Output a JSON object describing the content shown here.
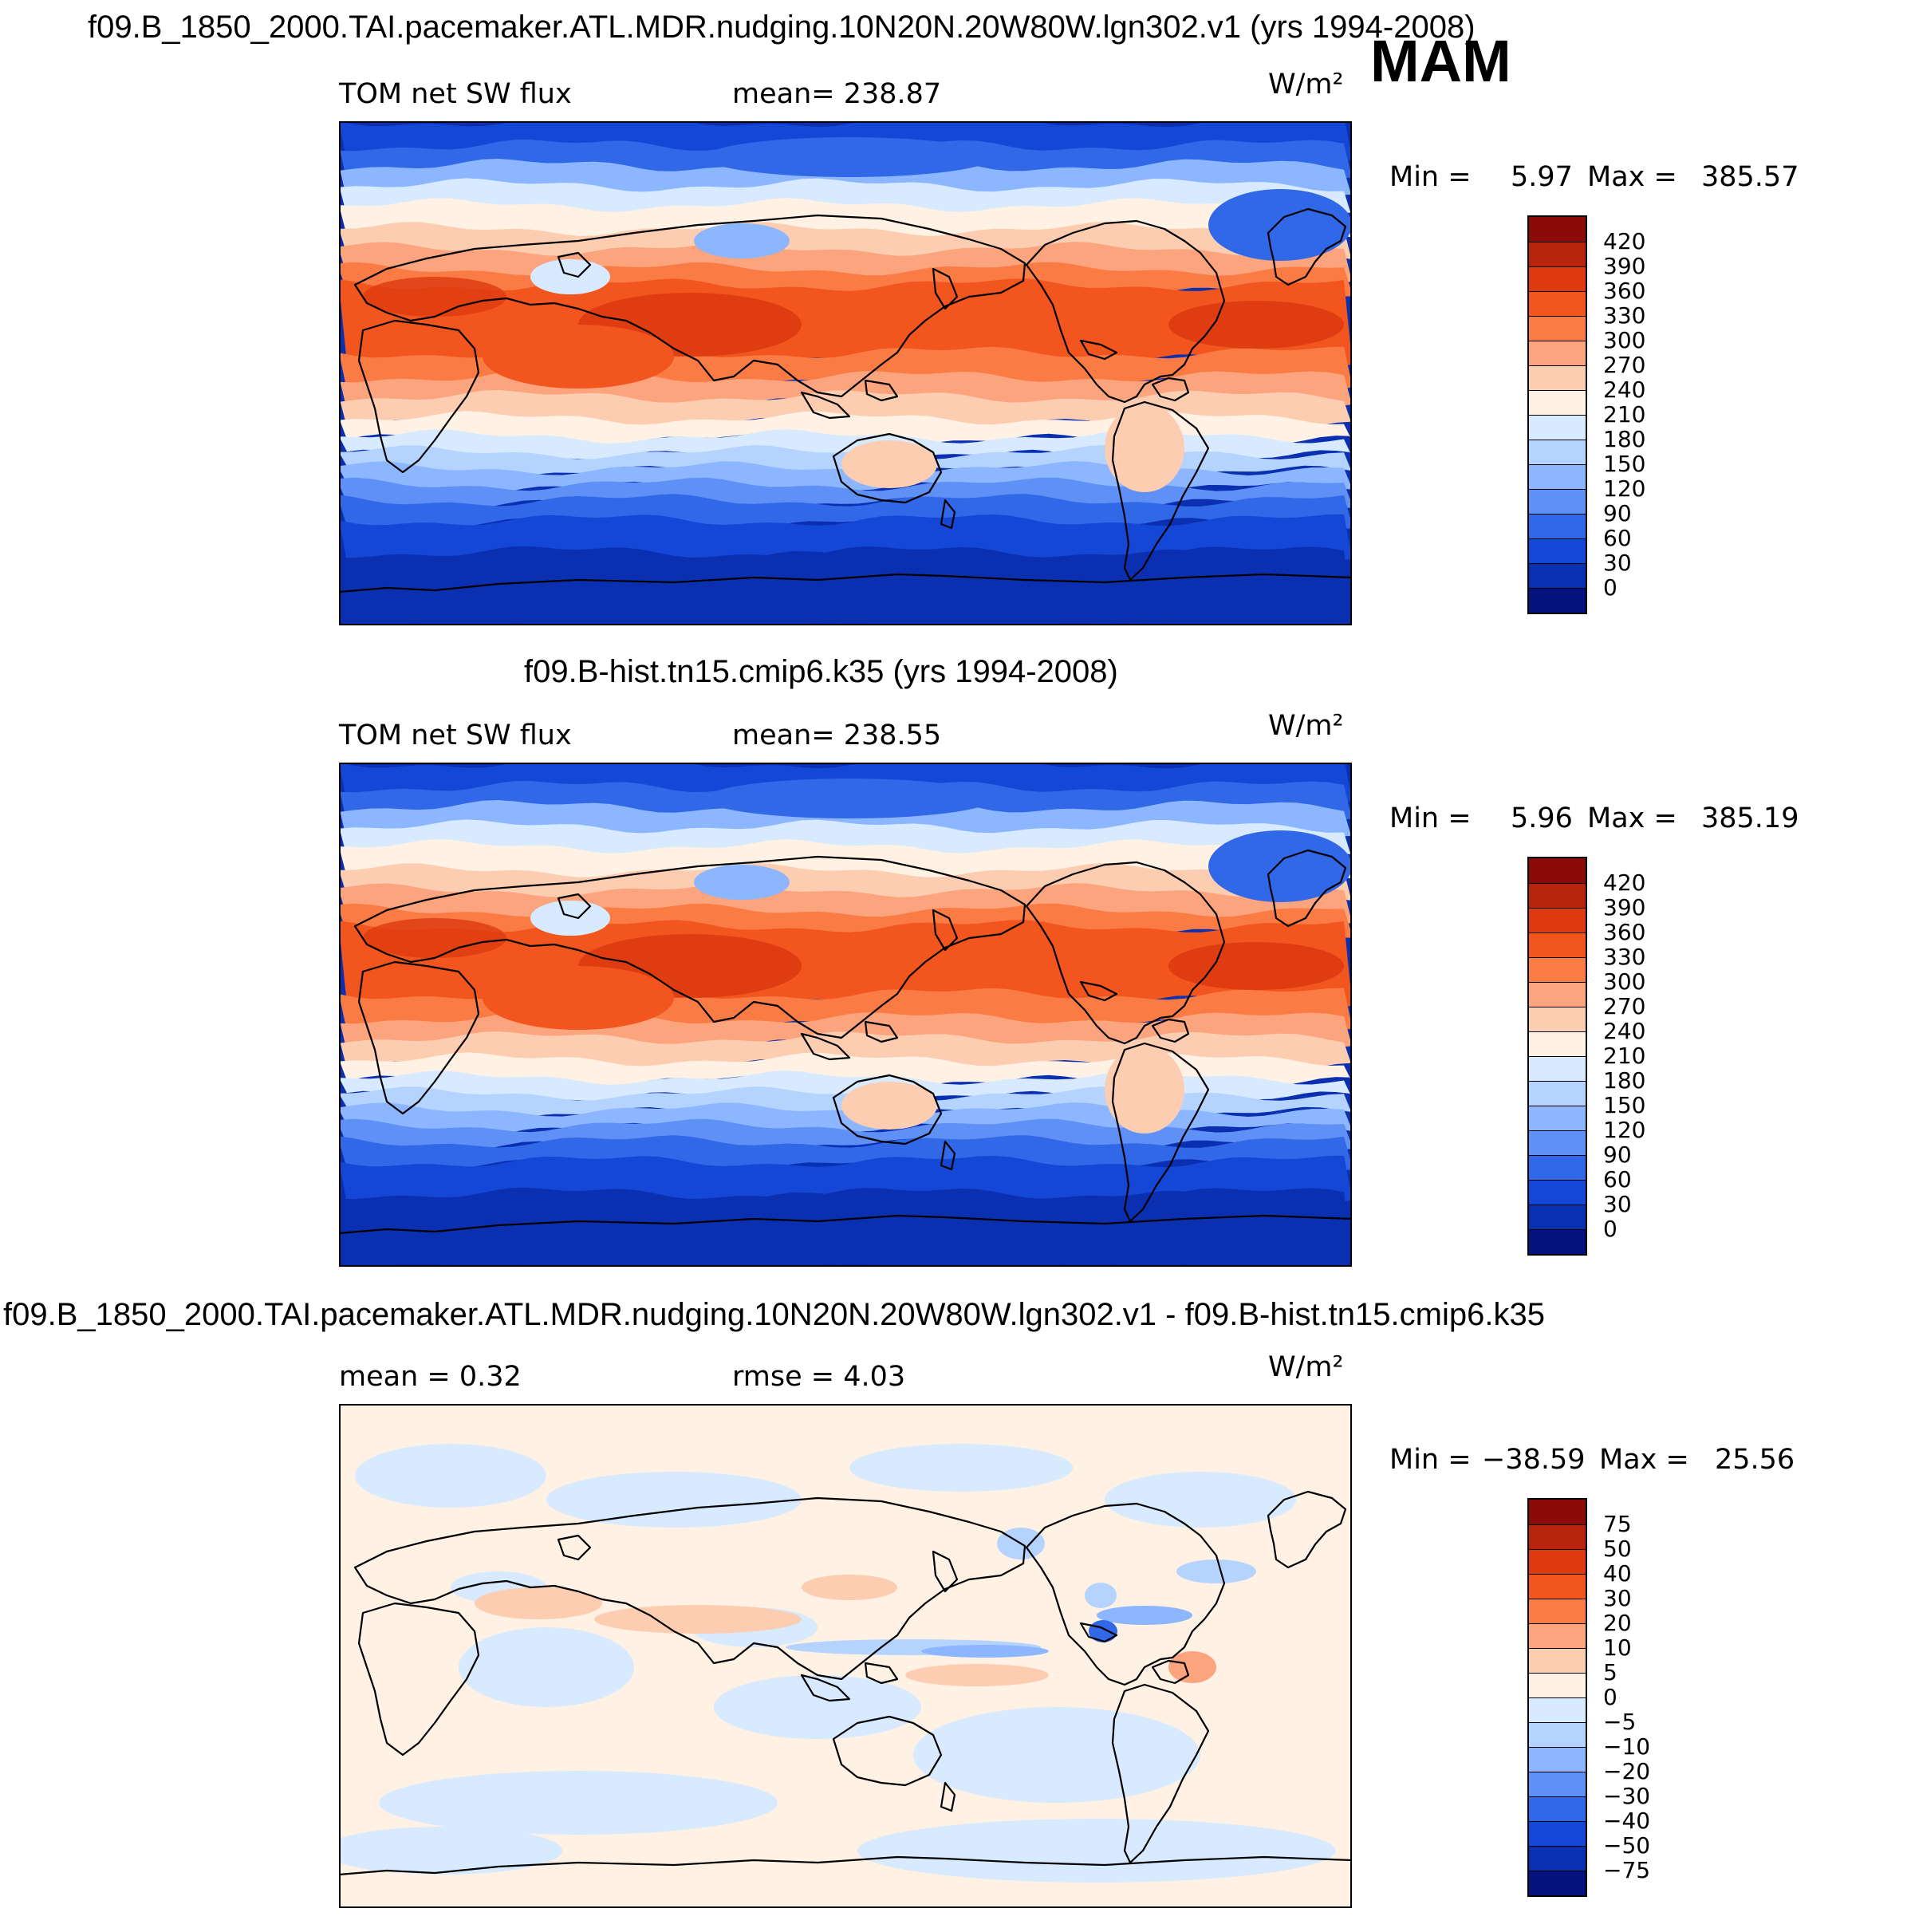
{
  "header": {
    "title_top": "f09.B_1850_2000.TAI.pacemaker.ATL.MDR.nudging.10N20N.20W80W.lgn302.v1 (yrs 1994-2008)",
    "season": "MAM",
    "title_mid": "f09.B-hist.tn15.cmip6.k35 (yrs 1994-2008)",
    "title_diff": "f09.B_1850_2000.TAI.pacemaker.ATL.MDR.nudging.10N20N.20W80W.lgn302.v1 - f09.B-hist.tn15.cmip6.k35"
  },
  "panels": [
    {
      "id": "case",
      "left_label": "TOM net SW flux",
      "stat_label": "mean= 238.87",
      "units": "W/m²",
      "min_label": "Min =",
      "min_value": "5.97",
      "max_label": "Max =",
      "max_value": "385.57",
      "levels": [
        "420",
        "390",
        "360",
        "330",
        "300",
        "270",
        "240",
        "210",
        "180",
        "150",
        "120",
        "90",
        "60",
        "30",
        "0"
      ],
      "colors": [
        "#8b0a0a",
        "#b8230d",
        "#dd3a0f",
        "#f2561e",
        "#fb7b45",
        "#fca47d",
        "#fdcdb2",
        "#fff1e3",
        "#d7eaff",
        "#b4d3ff",
        "#8cb6ff",
        "#5e90f5",
        "#3068e8",
        "#1447d6",
        "#0a2fb0",
        "#04127e"
      ],
      "kind": "abs"
    },
    {
      "id": "control",
      "left_label": "TOM net SW flux",
      "stat_label": "mean= 238.55",
      "units": "W/m²",
      "min_label": "Min =",
      "min_value": "5.96",
      "max_label": "Max =",
      "max_value": "385.19",
      "levels": [
        "420",
        "390",
        "360",
        "330",
        "300",
        "270",
        "240",
        "210",
        "180",
        "150",
        "120",
        "90",
        "60",
        "30",
        "0"
      ],
      "colors": [
        "#8b0a0a",
        "#b8230d",
        "#dd3a0f",
        "#f2561e",
        "#fb7b45",
        "#fca47d",
        "#fdcdb2",
        "#fff1e3",
        "#d7eaff",
        "#b4d3ff",
        "#8cb6ff",
        "#5e90f5",
        "#3068e8",
        "#1447d6",
        "#0a2fb0",
        "#04127e"
      ],
      "kind": "abs"
    },
    {
      "id": "diff",
      "left_label": "mean =    0.32",
      "stat_label": "rmse =    4.03",
      "units": "W/m²",
      "min_label": "Min =",
      "min_value": "−38.59",
      "max_label": "Max =",
      "max_value": "25.56",
      "levels": [
        "75",
        "50",
        "40",
        "30",
        "20",
        "10",
        "5",
        "0",
        "−5",
        "−10",
        "−20",
        "−30",
        "−40",
        "−50",
        "−75"
      ],
      "colors": [
        "#8b0a0a",
        "#b8230d",
        "#dd3a0f",
        "#f2561e",
        "#fb7b45",
        "#fca47d",
        "#fdcdb2",
        "#fff1e3",
        "#d7eaff",
        "#b4d3ff",
        "#8cb6ff",
        "#5e90f5",
        "#3068e8",
        "#1447d6",
        "#0a2fb0",
        "#04127e"
      ],
      "kind": "diff"
    }
  ]
}
